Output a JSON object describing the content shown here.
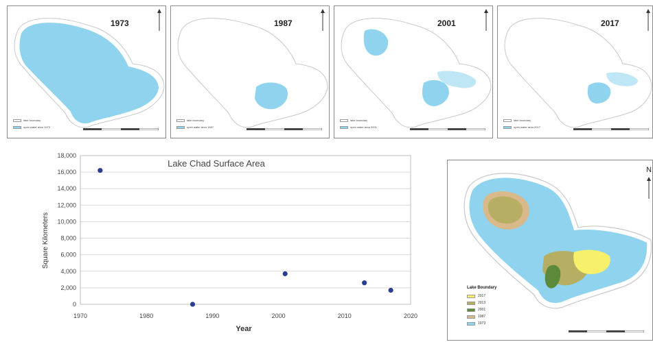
{
  "maps": [
    {
      "year": "1973",
      "legend": [
        "lake boundary",
        "open water area 1973"
      ]
    },
    {
      "year": "1987",
      "legend": [
        "lake boundary",
        "open water area 1987"
      ]
    },
    {
      "year": "2001",
      "legend": [
        "lake boundary",
        "open water area 2001"
      ]
    },
    {
      "year": "2017",
      "legend": [
        "lake boundary",
        "open water area 2017"
      ]
    }
  ],
  "colors": {
    "water": "#8fd3ee",
    "boundary": "#c8c8c8",
    "point": "#2b3f8f",
    "grid": "#d9d9d9",
    "yellow": "#f6f06a",
    "olive": "#b6ae62",
    "dark_green": "#5b8a3a",
    "tan": "#d9b88a"
  },
  "chart_data": {
    "type": "scatter",
    "title": "Lake Chad Surface Area",
    "xlabel": "Year",
    "ylabel": "Square Kilometers",
    "xlim": [
      1970,
      2020
    ],
    "ylim": [
      0,
      18000
    ],
    "xticks": [
      "1970",
      "1980",
      "1990",
      "2000",
      "2010",
      "2020"
    ],
    "yticks": [
      "0",
      "2,000",
      "4,000",
      "6,000",
      "8,000",
      "10,000",
      "12,000",
      "14,000",
      "16,000",
      "18,000"
    ],
    "x": [
      1973,
      1987,
      2001,
      2013,
      2017
    ],
    "y": [
      16200,
      0,
      3700,
      2600,
      1700
    ],
    "grid": true
  },
  "summary_map": {
    "north_label": "N",
    "legend_title": "Lake Boundary",
    "legend": [
      "2017",
      "2013",
      "2001",
      "1987",
      "1973"
    ]
  }
}
